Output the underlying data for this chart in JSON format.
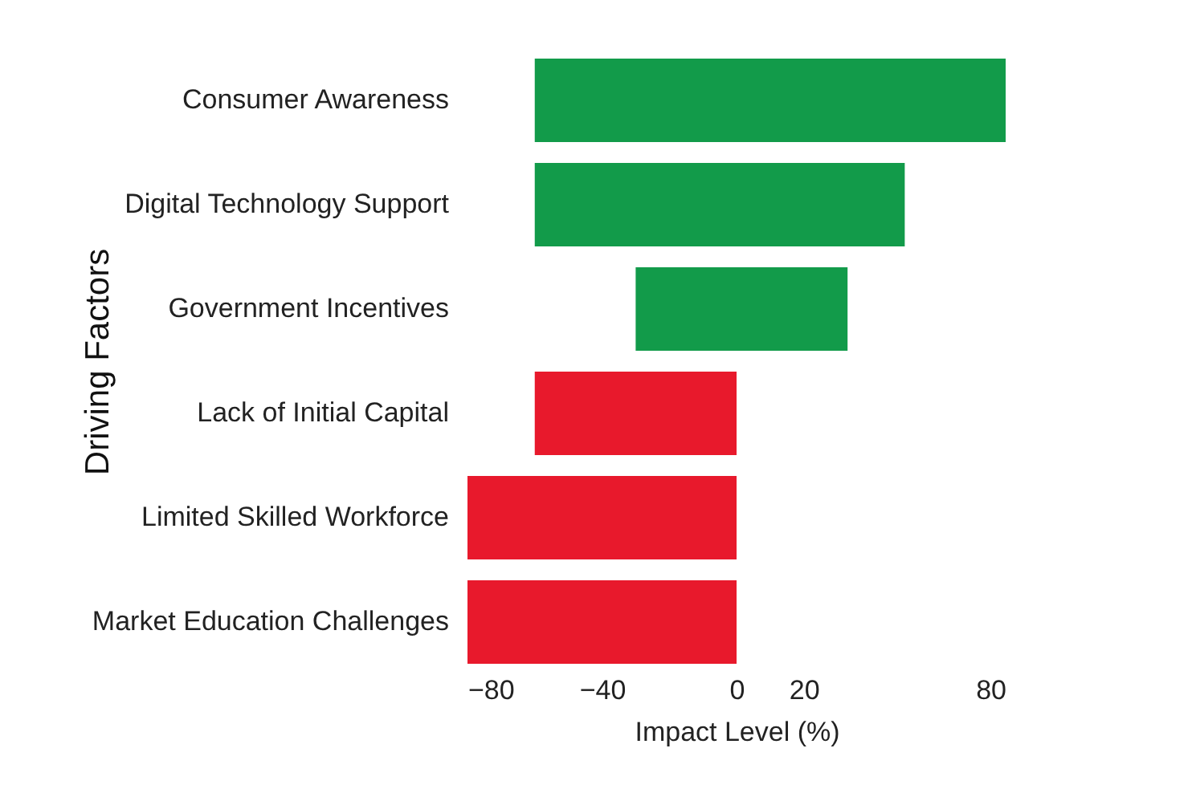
{
  "chart_data": {
    "type": "bar",
    "orientation": "horizontal",
    "xlabel": "Impact Level (%)",
    "ylabel": "Driving Factors",
    "categories": [
      "Consumer Awareness",
      "Digital Technology Support",
      "Government Incentives",
      "Lack of Initial Capital",
      "Limited Skilled Workforce",
      "Market Education Challenges"
    ],
    "values": [
      140,
      110,
      63,
      60,
      80,
      80
    ],
    "base": [
      -60,
      -60,
      -30,
      -60,
      -80,
      -80
    ],
    "colors": [
      "#129b4a",
      "#129b4a",
      "#129b4a",
      "#e8192c",
      "#e8192c",
      "#e8192c"
    ],
    "xlim": [
      -80,
      80
    ],
    "xticks": [
      -80,
      -40,
      0,
      20,
      80
    ],
    "grid": false
  }
}
